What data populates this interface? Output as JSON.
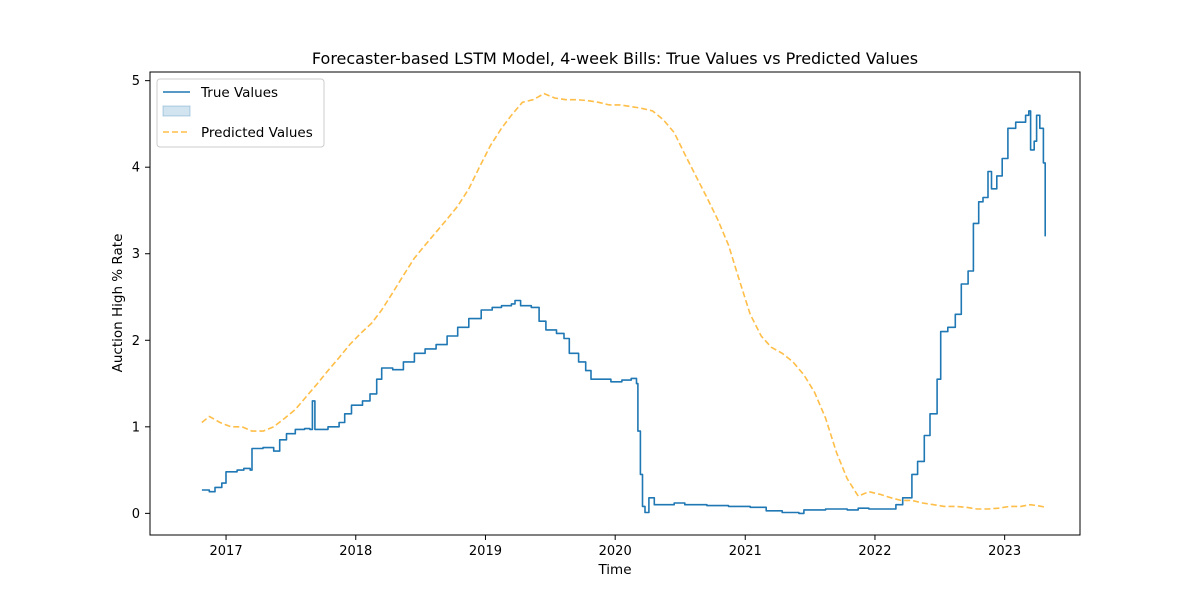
{
  "chart_data": {
    "type": "line",
    "title": "Forecaster-based LSTM Model, 4-week Bills: True Values vs Predicted Values",
    "xlabel": "Time",
    "ylabel": "Auction High % Rate",
    "xlim": [
      "2016-06-01",
      "2023-08-01"
    ],
    "ylim": [
      -0.25,
      5.1
    ],
    "x_ticks": [
      "2017",
      "2018",
      "2019",
      "2020",
      "2021",
      "2022",
      "2023"
    ],
    "y_ticks": [
      0,
      1,
      2,
      3,
      4,
      5
    ],
    "grid": false,
    "legend": {
      "placement": "top-left",
      "entries": [
        {
          "label": "True Values",
          "style": "solid",
          "color": "#1f77b4"
        },
        {
          "label": "",
          "style": "band",
          "color": "#1f77b4"
        },
        {
          "label": "Predicted Values",
          "style": "dashed",
          "color": "#ffa500"
        }
      ]
    },
    "series": [
      {
        "name": "True Values",
        "color": "#1f77b4",
        "style": "solid",
        "points": [
          [
            "2016-10-25",
            0.27
          ],
          [
            "2016-11-15",
            0.25
          ],
          [
            "2016-12-01",
            0.3
          ],
          [
            "2016-12-20",
            0.35
          ],
          [
            "2017-01-01",
            0.48
          ],
          [
            "2017-02-01",
            0.5
          ],
          [
            "2017-02-20",
            0.52
          ],
          [
            "2017-03-10",
            0.5
          ],
          [
            "2017-03-15",
            0.75
          ],
          [
            "2017-04-15",
            0.76
          ],
          [
            "2017-05-15",
            0.72
          ],
          [
            "2017-06-01",
            0.85
          ],
          [
            "2017-06-20",
            0.92
          ],
          [
            "2017-07-15",
            0.97
          ],
          [
            "2017-08-10",
            0.98
          ],
          [
            "2017-08-25",
            0.97
          ],
          [
            "2017-09-01",
            1.3
          ],
          [
            "2017-09-08",
            0.97
          ],
          [
            "2017-10-15",
            1.0
          ],
          [
            "2017-11-15",
            1.05
          ],
          [
            "2017-12-01",
            1.15
          ],
          [
            "2017-12-20",
            1.25
          ],
          [
            "2018-01-20",
            1.3
          ],
          [
            "2018-02-10",
            1.38
          ],
          [
            "2018-03-01",
            1.55
          ],
          [
            "2018-03-15",
            1.68
          ],
          [
            "2018-04-15",
            1.66
          ],
          [
            "2018-05-15",
            1.75
          ],
          [
            "2018-06-15",
            1.85
          ],
          [
            "2018-07-15",
            1.9
          ],
          [
            "2018-08-15",
            1.95
          ],
          [
            "2018-09-15",
            2.05
          ],
          [
            "2018-10-15",
            2.15
          ],
          [
            "2018-11-15",
            2.25
          ],
          [
            "2018-12-20",
            2.35
          ],
          [
            "2019-01-20",
            2.38
          ],
          [
            "2019-02-15",
            2.4
          ],
          [
            "2019-03-15",
            2.42
          ],
          [
            "2019-03-25",
            2.46
          ],
          [
            "2019-04-10",
            2.4
          ],
          [
            "2019-05-10",
            2.38
          ],
          [
            "2019-06-01",
            2.22
          ],
          [
            "2019-06-20",
            2.12
          ],
          [
            "2019-07-20",
            2.08
          ],
          [
            "2019-08-10",
            2.02
          ],
          [
            "2019-08-25",
            1.85
          ],
          [
            "2019-09-20",
            1.75
          ],
          [
            "2019-10-10",
            1.65
          ],
          [
            "2019-10-25",
            1.55
          ],
          [
            "2019-11-20",
            1.55
          ],
          [
            "2019-12-20",
            1.52
          ],
          [
            "2020-01-20",
            1.54
          ],
          [
            "2020-02-15",
            1.56
          ],
          [
            "2020-03-01",
            1.5
          ],
          [
            "2020-03-05",
            0.95
          ],
          [
            "2020-03-12",
            0.45
          ],
          [
            "2020-03-18",
            0.08
          ],
          [
            "2020-03-25",
            0.01
          ],
          [
            "2020-04-05",
            0.18
          ],
          [
            "2020-04-20",
            0.1
          ],
          [
            "2020-06-15",
            0.12
          ],
          [
            "2020-07-15",
            0.1
          ],
          [
            "2020-09-15",
            0.09
          ],
          [
            "2020-11-15",
            0.08
          ],
          [
            "2021-01-15",
            0.07
          ],
          [
            "2021-03-01",
            0.03
          ],
          [
            "2021-04-15",
            0.01
          ],
          [
            "2021-06-01",
            0.0
          ],
          [
            "2021-06-15",
            0.04
          ],
          [
            "2021-08-15",
            0.05
          ],
          [
            "2021-10-15",
            0.04
          ],
          [
            "2021-11-15",
            0.06
          ],
          [
            "2021-12-15",
            0.05
          ],
          [
            "2022-01-15",
            0.05
          ],
          [
            "2022-02-15",
            0.05
          ],
          [
            "2022-03-01",
            0.1
          ],
          [
            "2022-03-20",
            0.18
          ],
          [
            "2022-04-15",
            0.45
          ],
          [
            "2022-05-01",
            0.6
          ],
          [
            "2022-05-20",
            0.9
          ],
          [
            "2022-06-05",
            1.15
          ],
          [
            "2022-06-25",
            1.55
          ],
          [
            "2022-07-05",
            2.1
          ],
          [
            "2022-07-25",
            2.15
          ],
          [
            "2022-08-15",
            2.3
          ],
          [
            "2022-09-01",
            2.65
          ],
          [
            "2022-09-20",
            2.8
          ],
          [
            "2022-10-05",
            3.35
          ],
          [
            "2022-10-20",
            3.6
          ],
          [
            "2022-11-01",
            3.65
          ],
          [
            "2022-11-15",
            3.95
          ],
          [
            "2022-11-25",
            3.75
          ],
          [
            "2022-12-10",
            3.9
          ],
          [
            "2022-12-25",
            4.1
          ],
          [
            "2023-01-10",
            4.45
          ],
          [
            "2023-02-01",
            4.52
          ],
          [
            "2023-03-01",
            4.6
          ],
          [
            "2023-03-10",
            4.65
          ],
          [
            "2023-03-15",
            4.2
          ],
          [
            "2023-03-25",
            4.3
          ],
          [
            "2023-04-01",
            4.6
          ],
          [
            "2023-04-10",
            4.45
          ],
          [
            "2023-04-20",
            4.05
          ],
          [
            "2023-04-25",
            3.2
          ]
        ]
      },
      {
        "name": "Predicted Values",
        "color": "#ffa500",
        "style": "dashed",
        "points": [
          [
            "2016-10-25",
            1.05
          ],
          [
            "2016-11-15",
            1.12
          ],
          [
            "2016-12-15",
            1.05
          ],
          [
            "2017-01-15",
            1.0
          ],
          [
            "2017-02-15",
            1.0
          ],
          [
            "2017-03-15",
            0.95
          ],
          [
            "2017-04-15",
            0.95
          ],
          [
            "2017-05-15",
            1.0
          ],
          [
            "2017-06-15",
            1.1
          ],
          [
            "2017-07-15",
            1.2
          ],
          [
            "2017-08-15",
            1.35
          ],
          [
            "2017-09-15",
            1.5
          ],
          [
            "2017-10-15",
            1.65
          ],
          [
            "2017-11-15",
            1.8
          ],
          [
            "2017-12-15",
            1.95
          ],
          [
            "2018-01-15",
            2.08
          ],
          [
            "2018-02-15",
            2.2
          ],
          [
            "2018-03-15",
            2.35
          ],
          [
            "2018-04-15",
            2.55
          ],
          [
            "2018-05-15",
            2.75
          ],
          [
            "2018-06-15",
            2.95
          ],
          [
            "2018-07-15",
            3.1
          ],
          [
            "2018-08-15",
            3.25
          ],
          [
            "2018-09-15",
            3.4
          ],
          [
            "2018-10-15",
            3.55
          ],
          [
            "2018-11-15",
            3.75
          ],
          [
            "2018-12-15",
            4.0
          ],
          [
            "2019-01-15",
            4.25
          ],
          [
            "2019-02-15",
            4.45
          ],
          [
            "2019-03-15",
            4.6
          ],
          [
            "2019-04-15",
            4.75
          ],
          [
            "2019-05-15",
            4.78
          ],
          [
            "2019-06-15",
            4.85
          ],
          [
            "2019-07-15",
            4.8
          ],
          [
            "2019-08-15",
            4.78
          ],
          [
            "2019-09-15",
            4.78
          ],
          [
            "2019-10-15",
            4.77
          ],
          [
            "2019-11-15",
            4.75
          ],
          [
            "2019-12-15",
            4.72
          ],
          [
            "2020-01-15",
            4.72
          ],
          [
            "2020-02-15",
            4.7
          ],
          [
            "2020-03-15",
            4.68
          ],
          [
            "2020-04-15",
            4.65
          ],
          [
            "2020-05-15",
            4.55
          ],
          [
            "2020-06-15",
            4.4
          ],
          [
            "2020-07-15",
            4.15
          ],
          [
            "2020-08-15",
            3.9
          ],
          [
            "2020-09-15",
            3.65
          ],
          [
            "2020-10-15",
            3.4
          ],
          [
            "2020-11-15",
            3.1
          ],
          [
            "2020-12-15",
            2.7
          ],
          [
            "2021-01-15",
            2.3
          ],
          [
            "2021-02-15",
            2.05
          ],
          [
            "2021-03-15",
            1.92
          ],
          [
            "2021-04-15",
            1.85
          ],
          [
            "2021-05-15",
            1.75
          ],
          [
            "2021-06-15",
            1.6
          ],
          [
            "2021-07-15",
            1.4
          ],
          [
            "2021-08-15",
            1.1
          ],
          [
            "2021-09-15",
            0.7
          ],
          [
            "2021-10-15",
            0.4
          ],
          [
            "2021-11-15",
            0.2
          ],
          [
            "2021-12-15",
            0.25
          ],
          [
            "2022-01-15",
            0.22
          ],
          [
            "2022-02-15",
            0.18
          ],
          [
            "2022-03-15",
            0.15
          ],
          [
            "2022-04-15",
            0.15
          ],
          [
            "2022-05-15",
            0.12
          ],
          [
            "2022-06-15",
            0.1
          ],
          [
            "2022-07-15",
            0.08
          ],
          [
            "2022-08-15",
            0.08
          ],
          [
            "2022-09-15",
            0.07
          ],
          [
            "2022-10-15",
            0.05
          ],
          [
            "2022-11-15",
            0.05
          ],
          [
            "2022-12-15",
            0.06
          ],
          [
            "2023-01-15",
            0.08
          ],
          [
            "2023-02-15",
            0.08
          ],
          [
            "2023-03-15",
            0.1
          ],
          [
            "2023-04-15",
            0.08
          ],
          [
            "2023-04-25",
            0.07
          ]
        ]
      }
    ]
  }
}
